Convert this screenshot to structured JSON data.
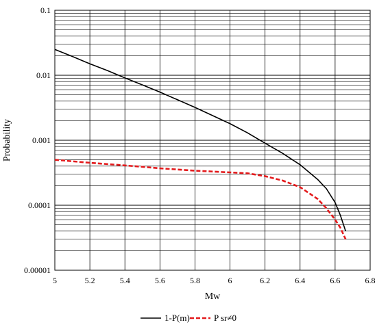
{
  "chart_data": {
    "type": "line",
    "xlabel": "Mw",
    "ylabel": "Probability",
    "xlim": [
      5,
      6.8
    ],
    "ylim": [
      1e-05,
      0.1
    ],
    "yscale": "log",
    "xticks": [
      "5",
      "5.2",
      "5.4",
      "5.6",
      "5.8",
      "6",
      "6.2",
      "6.4",
      "6.6",
      "6.8"
    ],
    "yticks": [
      "0.00001",
      "0.0001",
      "0.001",
      "0.01",
      "0.1"
    ],
    "grid": "major and minor, both axes",
    "legend_position": "bottom",
    "series": [
      {
        "name": "1-P(m)",
        "color": "#000000",
        "style": "solid",
        "points": [
          [
            5.0,
            0.025
          ],
          [
            5.1,
            0.0195
          ],
          [
            5.2,
            0.015
          ],
          [
            5.3,
            0.0118
          ],
          [
            5.4,
            0.0091
          ],
          [
            5.5,
            0.0071
          ],
          [
            5.6,
            0.0055
          ],
          [
            5.7,
            0.0042
          ],
          [
            5.8,
            0.0032
          ],
          [
            5.9,
            0.0024
          ],
          [
            6.0,
            0.0018
          ],
          [
            6.1,
            0.0013
          ],
          [
            6.2,
            0.0009
          ],
          [
            6.3,
            0.00063
          ],
          [
            6.4,
            0.00042
          ],
          [
            6.5,
            0.00025
          ],
          [
            6.55,
            0.00018
          ],
          [
            6.6,
            0.00011
          ],
          [
            6.63,
            7e-05
          ],
          [
            6.66,
            4e-05
          ]
        ]
      },
      {
        "name": "P sr≠0",
        "color": "#e31a1c",
        "style": "dashed",
        "points": [
          [
            5.0,
            0.0005
          ],
          [
            5.2,
            0.00045
          ],
          [
            5.4,
            0.00041
          ],
          [
            5.6,
            0.00037
          ],
          [
            5.8,
            0.00034
          ],
          [
            6.0,
            0.00032
          ],
          [
            6.1,
            0.00031
          ],
          [
            6.2,
            0.00028
          ],
          [
            6.3,
            0.00024
          ],
          [
            6.4,
            0.00019
          ],
          [
            6.5,
            0.000125
          ],
          [
            6.55,
            9e-05
          ],
          [
            6.6,
            6e-05
          ],
          [
            6.63,
            4.5e-05
          ],
          [
            6.66,
            3e-05
          ]
        ]
      }
    ]
  }
}
